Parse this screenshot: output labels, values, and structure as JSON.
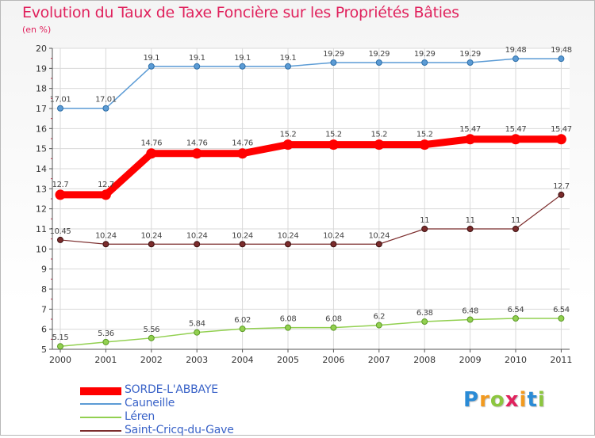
{
  "header": {
    "title": "Evolution du Taux de Taxe Foncière sur les Propriétés Bâties",
    "unit": "(en %)"
  },
  "logo": {
    "text": "Proxiti"
  },
  "chart_data": {
    "type": "line",
    "title": "Evolution du Taux de Taxe Foncière sur les Propriétés Bâties",
    "ylabel": "(en %)",
    "xlabel": "",
    "ylim": [
      5,
      20
    ],
    "yticks": [
      "5",
      "6",
      "7",
      "8",
      "9",
      "10",
      "11",
      "12",
      "13",
      "14",
      "15",
      "16",
      "17",
      "18",
      "19",
      "20"
    ],
    "categories": [
      "2000",
      "2001",
      "2002",
      "2003",
      "2004",
      "2005",
      "2006",
      "2007",
      "2008",
      "2009",
      "2010",
      "2011"
    ],
    "legend_position": "bottom-left",
    "series": [
      {
        "name": "SORDE-L'ABBAYE",
        "color": "#ff0000",
        "values": [
          12.7,
          12.7,
          14.76,
          14.76,
          14.76,
          15.2,
          15.2,
          15.2,
          15.2,
          15.47,
          15.47,
          15.47
        ],
        "labels": [
          "12.7",
          "12.7",
          "14.76",
          "14.76",
          "14.76",
          "15.2",
          "15.2",
          "15.2",
          "15.2",
          "15.47",
          "15.47",
          "15.47"
        ]
      },
      {
        "name": "Cauneille",
        "color": "#5b9bd5",
        "values": [
          17.01,
          17.01,
          19.1,
          19.1,
          19.1,
          19.1,
          19.29,
          19.29,
          19.29,
          19.29,
          19.48,
          19.48
        ],
        "labels": [
          "17.01",
          "17.01",
          "19.1",
          "19.1",
          "19.1",
          "19.1",
          "19.29",
          "19.29",
          "19.29",
          "19.29",
          "19.48",
          "19.48"
        ]
      },
      {
        "name": "Léren",
        "color": "#92d050",
        "values": [
          5.15,
          5.36,
          5.56,
          5.84,
          6.02,
          6.08,
          6.08,
          6.2,
          6.38,
          6.48,
          6.54,
          6.54
        ],
        "labels": [
          "5.15",
          "5.36",
          "5.56",
          "5.84",
          "6.02",
          "6.08",
          "6.08",
          "6.2",
          "6.38",
          "6.48",
          "6.54",
          "6.54"
        ]
      },
      {
        "name": "Saint-Cricq-du-Gave",
        "color": "#7b2c2c",
        "values": [
          10.45,
          10.24,
          10.24,
          10.24,
          10.24,
          10.24,
          10.24,
          10.24,
          11,
          11,
          11,
          12.7
        ],
        "labels": [
          "10.45",
          "10.24",
          "10.24",
          "10.24",
          "10.24",
          "10.24",
          "10.24",
          "10.24",
          "11",
          "11",
          "11",
          "12.7"
        ]
      }
    ]
  }
}
